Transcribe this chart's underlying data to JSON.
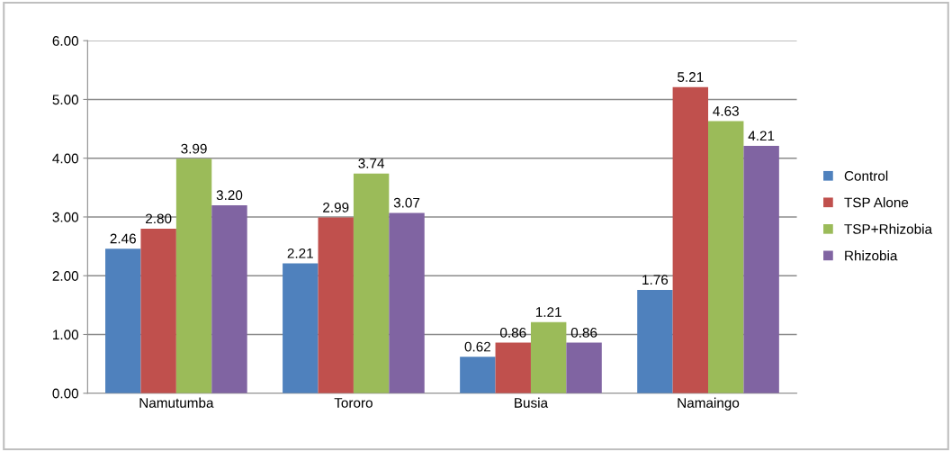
{
  "chart_data": {
    "type": "bar",
    "categories": [
      "Namutumba",
      "Tororo",
      "Busia",
      "Namaingo"
    ],
    "series": [
      {
        "name": "Control",
        "color": "#4f81bd",
        "values": [
          2.46,
          2.21,
          0.62,
          1.76
        ],
        "value_labels": [
          "2.46",
          "2.21",
          "0.62",
          "1.76"
        ]
      },
      {
        "name": "TSP Alone",
        "color": "#c0504d",
        "values": [
          2.8,
          2.99,
          0.86,
          5.21
        ],
        "value_labels": [
          "2.80",
          "2.99",
          "0.86",
          "5.21"
        ]
      },
      {
        "name": "TSP+Rhizobia",
        "color": "#9bbb59",
        "values": [
          3.99,
          3.74,
          1.21,
          4.63
        ],
        "value_labels": [
          "3.99",
          "3.74",
          "1.21",
          "4.63"
        ]
      },
      {
        "name": "Rhizobia",
        "color": "#8064a2",
        "values": [
          3.2,
          3.07,
          0.86,
          4.21
        ],
        "value_labels": [
          "3.20",
          "3.07",
          "0.86",
          "4.21"
        ]
      }
    ],
    "ylim": [
      0,
      6
    ],
    "yticks": [
      {
        "value": 0,
        "label": "0.00"
      },
      {
        "value": 1,
        "label": "1.00"
      },
      {
        "value": 2,
        "label": "2.00"
      },
      {
        "value": 3,
        "label": "3.00"
      },
      {
        "value": 4,
        "label": "4.00"
      },
      {
        "value": 5,
        "label": "5.00"
      },
      {
        "value": 6,
        "label": "6.00"
      }
    ],
    "grid": "y",
    "legend": "right"
  }
}
